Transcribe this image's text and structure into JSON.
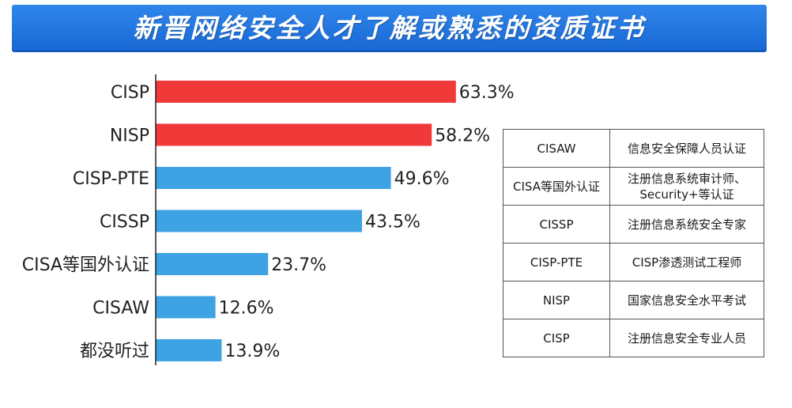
{
  "banner": {
    "title": "新晋网络安全人才了解或熟悉的资质证书"
  },
  "chart_data": {
    "type": "bar",
    "orientation": "horizontal",
    "title": "新晋网络安全人才了解或熟悉的资质证书",
    "categories": [
      "CISP",
      "NISP",
      "CISP-PTE",
      "CISSP",
      "CISA等国外认证",
      "CISAW",
      "都没听过"
    ],
    "values": [
      63.3,
      58.2,
      49.6,
      43.5,
      23.7,
      12.6,
      13.9
    ],
    "value_labels": [
      "63.3%",
      "58.2%",
      "49.6%",
      "43.5%",
      "23.7%",
      "12.6%",
      "13.9%"
    ],
    "bar_colors": [
      "#f03a3a",
      "#f03a3a",
      "#3da3e3",
      "#3da3e3",
      "#3da3e3",
      "#3da3e3",
      "#3da3e3"
    ],
    "axis_color": "#222222",
    "xlim": [
      0,
      100
    ],
    "unit": "%"
  },
  "legend_table": {
    "rows": [
      {
        "name": "CISAW",
        "desc": "信息安全保障人员认证"
      },
      {
        "name": "CISA等国外认证",
        "desc": "注册信息系统审计师、Security+等认证"
      },
      {
        "name": "CISSP",
        "desc": "注册信息系统安全专家"
      },
      {
        "name": "CISP-PTE",
        "desc": "CISP渗透测试工程师"
      },
      {
        "name": "NISP",
        "desc": "国家信息安全水平考试"
      },
      {
        "name": "CISP",
        "desc": "注册信息安全专业人员"
      }
    ]
  }
}
